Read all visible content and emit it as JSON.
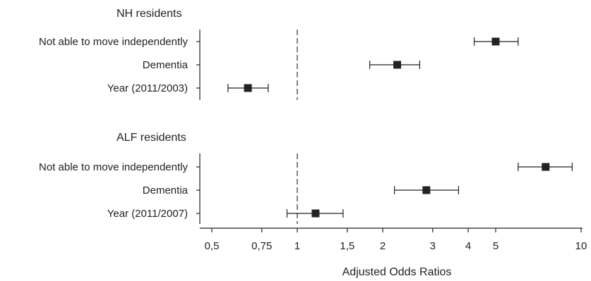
{
  "chart_data": {
    "type": "forest",
    "xlabel": "Adjusted Odds Ratios",
    "x_scale": "log",
    "xlim": [
      0.45,
      10.2
    ],
    "reference_line": 1,
    "ticks": [
      {
        "value": 0.5,
        "label": "0,5"
      },
      {
        "value": 0.75,
        "label": "0,75"
      },
      {
        "value": 1,
        "label": "1"
      },
      {
        "value": 1.5,
        "label": "1,5"
      },
      {
        "value": 2,
        "label": "2"
      },
      {
        "value": 3,
        "label": "3"
      },
      {
        "value": 4,
        "label": "4"
      },
      {
        "value": 5,
        "label": "5"
      },
      {
        "value": 10,
        "label": "10"
      }
    ],
    "groups": [
      {
        "title": "NH residents",
        "rows": [
          {
            "label": "Not able to move independently",
            "or": 5.0,
            "lo": 4.2,
            "hi": 6.0
          },
          {
            "label": "Dementia",
            "or": 2.25,
            "lo": 1.8,
            "hi": 2.7
          },
          {
            "label": "Year (2011/2003)",
            "or": 0.67,
            "lo": 0.57,
            "hi": 0.79
          }
        ]
      },
      {
        "title": "ALF residents",
        "rows": [
          {
            "label": "Not able to move independently",
            "or": 7.5,
            "lo": 6.0,
            "hi": 9.3
          },
          {
            "label": "Dementia",
            "or": 2.85,
            "lo": 2.2,
            "hi": 3.7
          },
          {
            "label": "Year (2011/2007)",
            "or": 1.16,
            "lo": 0.92,
            "hi": 1.45
          }
        ]
      }
    ]
  }
}
